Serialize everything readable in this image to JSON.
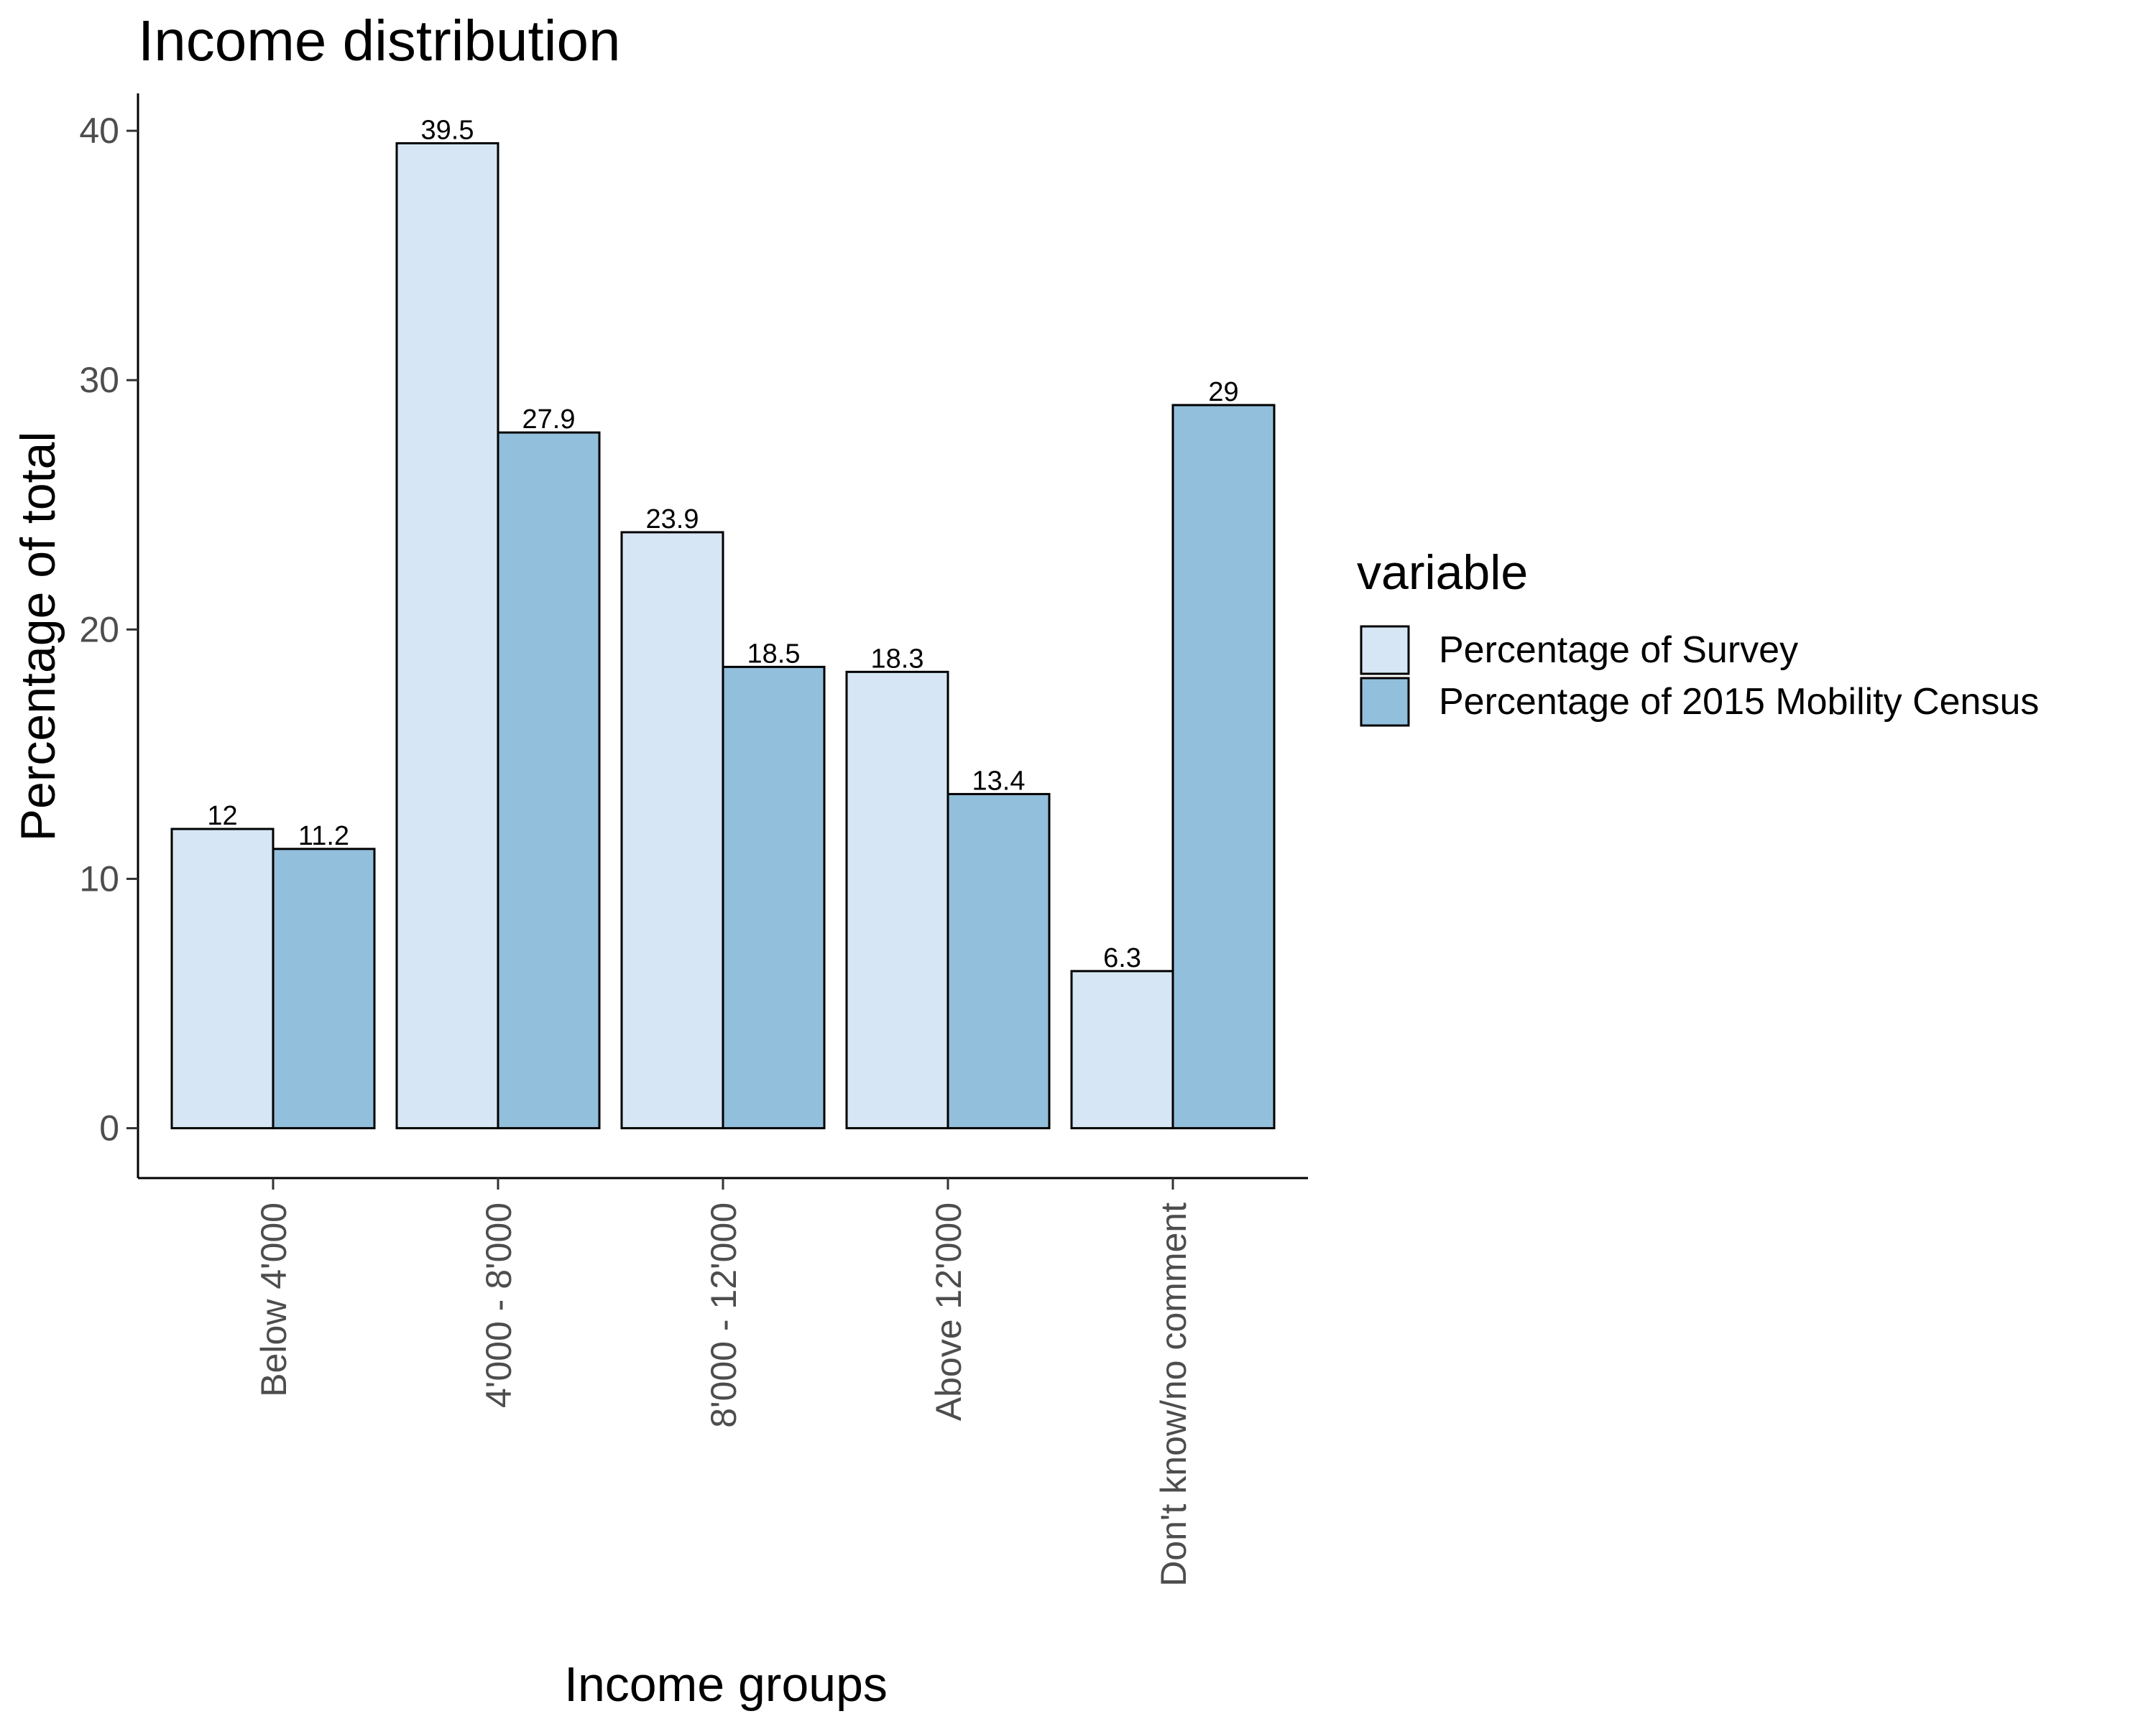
{
  "chart_data": {
    "type": "bar",
    "title": "Income distribution",
    "xlabel": "Income groups",
    "ylabel": "Percentage of total",
    "categories": [
      "Below 4'000",
      "4'000 - 8'000",
      "8'000 - 12'000",
      "Above 12'000",
      "Don't know/no comment"
    ],
    "series": [
      {
        "name": "Percentage of Survey",
        "values": [
          12,
          39.5,
          23.9,
          18.3,
          6.3
        ],
        "labels": [
          "12",
          "39.5",
          "23.9",
          "18.3",
          "6.3"
        ],
        "color": "#d6e6f4"
      },
      {
        "name": "Percentage of 2015 Mobility Census",
        "values": [
          11.2,
          27.9,
          18.5,
          13.4,
          29
        ],
        "labels": [
          "11.2",
          "27.9",
          "18.5",
          "13.4",
          "29"
        ],
        "color": "#92bfdb"
      }
    ],
    "ylim": [
      -2,
      41.5
    ],
    "yticks": [
      0,
      10,
      20,
      30,
      40
    ],
    "ytick_labels": [
      "0",
      "10",
      "20",
      "30",
      "40"
    ],
    "grid": false,
    "bar_outline_color": "#000000",
    "legend": {
      "title": "variable",
      "position": "right"
    }
  }
}
